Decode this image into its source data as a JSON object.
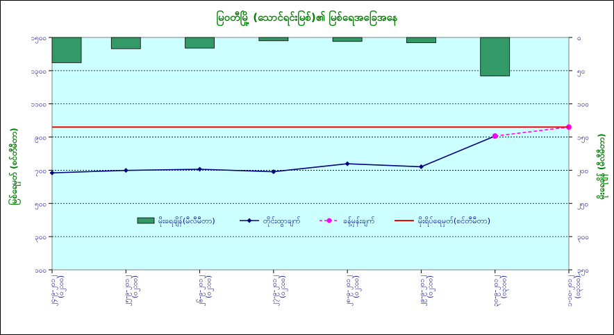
{
  "chart_data": {
    "type": "bar+line",
    "title": "မြဝတီမြို့ (သောင်ရင်းမြစ်)၏ မြစ်ရေအခြေအနေ",
    "left_ylabel": "မြစ်ရေမှတ် (စင်တီမီတာ)",
    "right_ylabel": "မိုးရေချိန် (မီလီမီတာ)",
    "left_ylim": [
      100,
      1500
    ],
    "left_ticks": [
      "၁၀၀",
      "၃၀၀",
      "၅၀၀",
      "၇၀၀",
      "၉၀၀",
      "၁၁၀၀",
      "၁၃၀၀",
      "၁၅၀၀"
    ],
    "left_tick_values": [
      100,
      300,
      500,
      700,
      900,
      1100,
      1300,
      1500
    ],
    "right_ylim": [
      0,
      350
    ],
    "right_ticks": [
      "၀",
      "၅၀",
      "၁၀၀",
      "၁၅၀",
      "၂၀၀",
      "၂၅၀",
      "၃၀၀",
      "၃၅၀"
    ],
    "right_tick_values": [
      0,
      50,
      100,
      150,
      200,
      250,
      300,
      350
    ],
    "categories": [
      "၂၄-၉-၂၀၁၂ (၀၂:၀၀)",
      "၂၅-၉-၂၀၁၂ (၀၂:၀၀)",
      "၂၆-၉-၂၀၁၂ (၀၂:၀၀)",
      "၂၇-၉-၂၀၁၂ (၀၂:၀၀)",
      "၂၈-၉-၂၀၁၂ (၀၂:၀၀)",
      "၂၉-၉-၂၀၁၂ (၀၂:၀၀)",
      "၃၀-၉-၂၀၁၂ (၀၃:၀၀)",
      "၁-၁၀-၂၀၁၂ (၀၃:၀၀)"
    ],
    "series": [
      {
        "name": "မိုးရေချိန်(မီလီမီတာ)",
        "type": "bar",
        "axis": "right",
        "color": "#339966",
        "values": [
          38,
          17,
          16,
          5,
          6,
          8,
          58,
          null
        ]
      },
      {
        "name": "တိုင်းထွာချက်",
        "type": "line",
        "axis": "left",
        "color": "#000080",
        "values": [
          684,
          699,
          706,
          691,
          739,
          721,
          906,
          null
        ]
      },
      {
        "name": "ခန့်မှန်းချက်",
        "type": "line",
        "axis": "left",
        "color": "#FF00FF",
        "dashed": true,
        "values": [
          null,
          null,
          null,
          null,
          null,
          null,
          906,
          960
        ]
      },
      {
        "name": "မိုးရိပ်ရေမှတ်(စင်တီမီတာ)",
        "type": "line",
        "axis": "left",
        "color": "#FF0000",
        "values": [
          960,
          960,
          960,
          960,
          960,
          960,
          960,
          960
        ]
      }
    ],
    "grid": true,
    "legend": "middle"
  }
}
